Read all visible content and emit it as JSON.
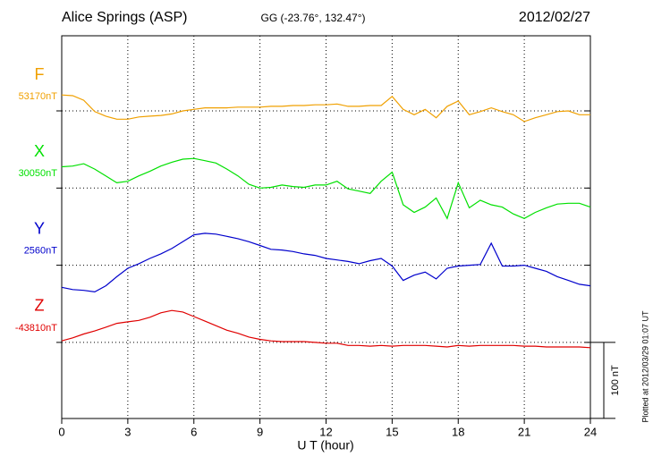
{
  "chart_data": {
    "type": "line",
    "title": "Alice Springs (ASP)",
    "subtitle": "GG (-23.76°, 132.47°)",
    "date": "2012/02/27",
    "x_label": "U T (hour)",
    "footnote": "Plotted at 2012/03/29 01:07 UT",
    "scale_bar": {
      "value": 100,
      "label": "100 nT"
    },
    "xlim": [
      0,
      24
    ],
    "xticks": [
      0,
      3,
      6,
      9,
      12,
      15,
      18,
      21,
      24
    ],
    "grid": true,
    "x": [
      0,
      0.5,
      1,
      1.5,
      2,
      2.5,
      3,
      3.5,
      4,
      4.5,
      5,
      5.5,
      6,
      6.5,
      7,
      7.5,
      8,
      8.5,
      9,
      9.5,
      10,
      10.5,
      11,
      11.5,
      12,
      12.5,
      13,
      13.5,
      14,
      14.5,
      15,
      15.5,
      16,
      16.5,
      17,
      17.5,
      18,
      18.5,
      19,
      19.5,
      20,
      20.5,
      21,
      21.5,
      22,
      22.5,
      23,
      23.5,
      24
    ],
    "series": [
      {
        "name": "F",
        "color": "#f0a000",
        "baseline": {
          "value": 53170,
          "label": "53170nT"
        },
        "values": [
          53191,
          53190,
          53184,
          53169,
          53163,
          53159,
          53159,
          53162,
          53163,
          53164,
          53166,
          53170,
          53172,
          53174,
          53174,
          53174,
          53175,
          53175,
          53175,
          53176,
          53176,
          53177,
          53177,
          53178,
          53178,
          53179,
          53176,
          53176,
          53177,
          53177,
          53189,
          53172,
          53165,
          53172,
          53161,
          53176,
          53183,
          53165,
          53169,
          53174,
          53169,
          53165,
          53156,
          53161,
          53165,
          53169,
          53170,
          53165,
          53165
        ]
      },
      {
        "name": "X",
        "color": "#00e000",
        "baseline": {
          "value": 30050,
          "label": "30050nT"
        },
        "values": [
          30078,
          30079,
          30082,
          30075,
          30066,
          30057,
          30059,
          30066,
          30072,
          30079,
          30084,
          30088,
          30089,
          30086,
          30083,
          30075,
          30066,
          30055,
          30050,
          30051,
          30054,
          30052,
          30051,
          30054,
          30054,
          30059,
          30049,
          30046,
          30043,
          30059,
          30071,
          30028,
          30018,
          30025,
          30037,
          30010,
          30057,
          30024,
          30034,
          30028,
          30025,
          30016,
          30010,
          30018,
          30024,
          30029,
          30030,
          30030,
          30025
        ]
      },
      {
        "name": "Y",
        "color": "#0000cc",
        "baseline": {
          "value": 2560,
          "label": "2560nT"
        },
        "values": [
          2531,
          2528,
          2527,
          2525,
          2533,
          2545,
          2556,
          2562,
          2569,
          2575,
          2582,
          2591,
          2600,
          2602,
          2601,
          2598,
          2595,
          2591,
          2586,
          2581,
          2580,
          2578,
          2575,
          2573,
          2569,
          2567,
          2565,
          2562,
          2566,
          2569,
          2559,
          2540,
          2547,
          2551,
          2542,
          2556,
          2559,
          2560,
          2561,
          2589,
          2559,
          2559,
          2560,
          2556,
          2552,
          2545,
          2540,
          2535,
          2533
        ]
      },
      {
        "name": "Z",
        "color": "#e00000",
        "baseline": {
          "value": -43810,
          "label": "-43810nT"
        },
        "values": [
          -43808,
          -43804,
          -43799,
          -43795,
          -43790,
          -43785,
          -43783,
          -43781,
          -43777,
          -43771,
          -43768,
          -43770,
          -43776,
          -43782,
          -43788,
          -43794,
          -43798,
          -43803,
          -43806,
          -43808,
          -43809,
          -43809,
          -43809,
          -43810,
          -43811,
          -43811,
          -43814,
          -43814,
          -43815,
          -43814,
          -43815,
          -43814,
          -43814,
          -43814,
          -43815,
          -43816,
          -43814,
          -43815,
          -43814,
          -43814,
          -43814,
          -43814,
          -43815,
          -43815,
          -43816,
          -43816,
          -43816,
          -43816,
          -43817
        ]
      }
    ]
  }
}
